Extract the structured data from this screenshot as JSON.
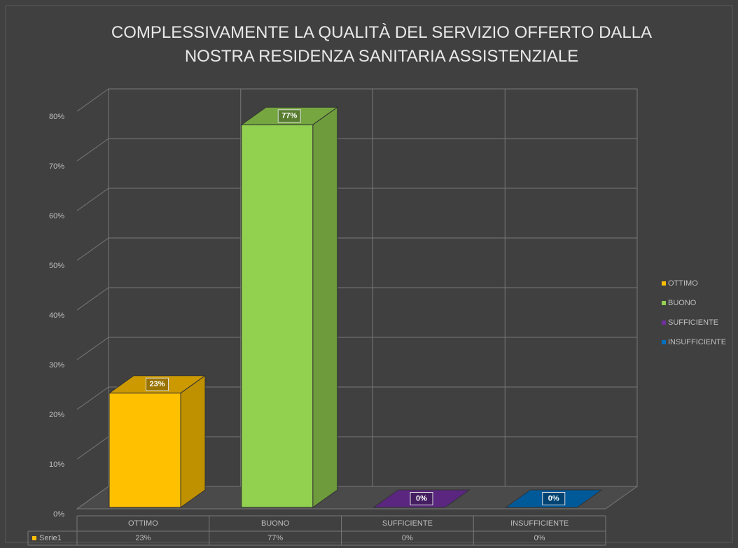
{
  "chart_data": {
    "type": "bar3d",
    "title": "COMPLESSIVAMENTE LA QUALITÀ DEL SERVIZIO OFFERTO DALLA NOSTRA RESIDENZA SANITARIA ASSISTENZIALE",
    "categories": [
      "OTTIMO",
      "BUONO",
      "SUFFICIENTE",
      "INSUFFICIENTE"
    ],
    "series": [
      {
        "name": "Serie1",
        "values": [
          23,
          77,
          0,
          0
        ],
        "value_labels": [
          "23%",
          "77%",
          "0%",
          "0%"
        ]
      }
    ],
    "colors": [
      "#ffc000",
      "#92d050",
      "#7030a0",
      "#0070c0"
    ],
    "ylim": [
      0,
      80
    ],
    "yticks": [
      {
        "value": 0,
        "label": "0%"
      },
      {
        "value": 10,
        "label": "10%"
      },
      {
        "value": 20,
        "label": "20%"
      },
      {
        "value": 30,
        "label": "30%"
      },
      {
        "value": 40,
        "label": "40%"
      },
      {
        "value": 50,
        "label": "50%"
      },
      {
        "value": 60,
        "label": "60%"
      },
      {
        "value": 70,
        "label": "70%"
      },
      {
        "value": 80,
        "label": "80%"
      }
    ],
    "grid": true,
    "legend": "right",
    "data_table": true
  }
}
